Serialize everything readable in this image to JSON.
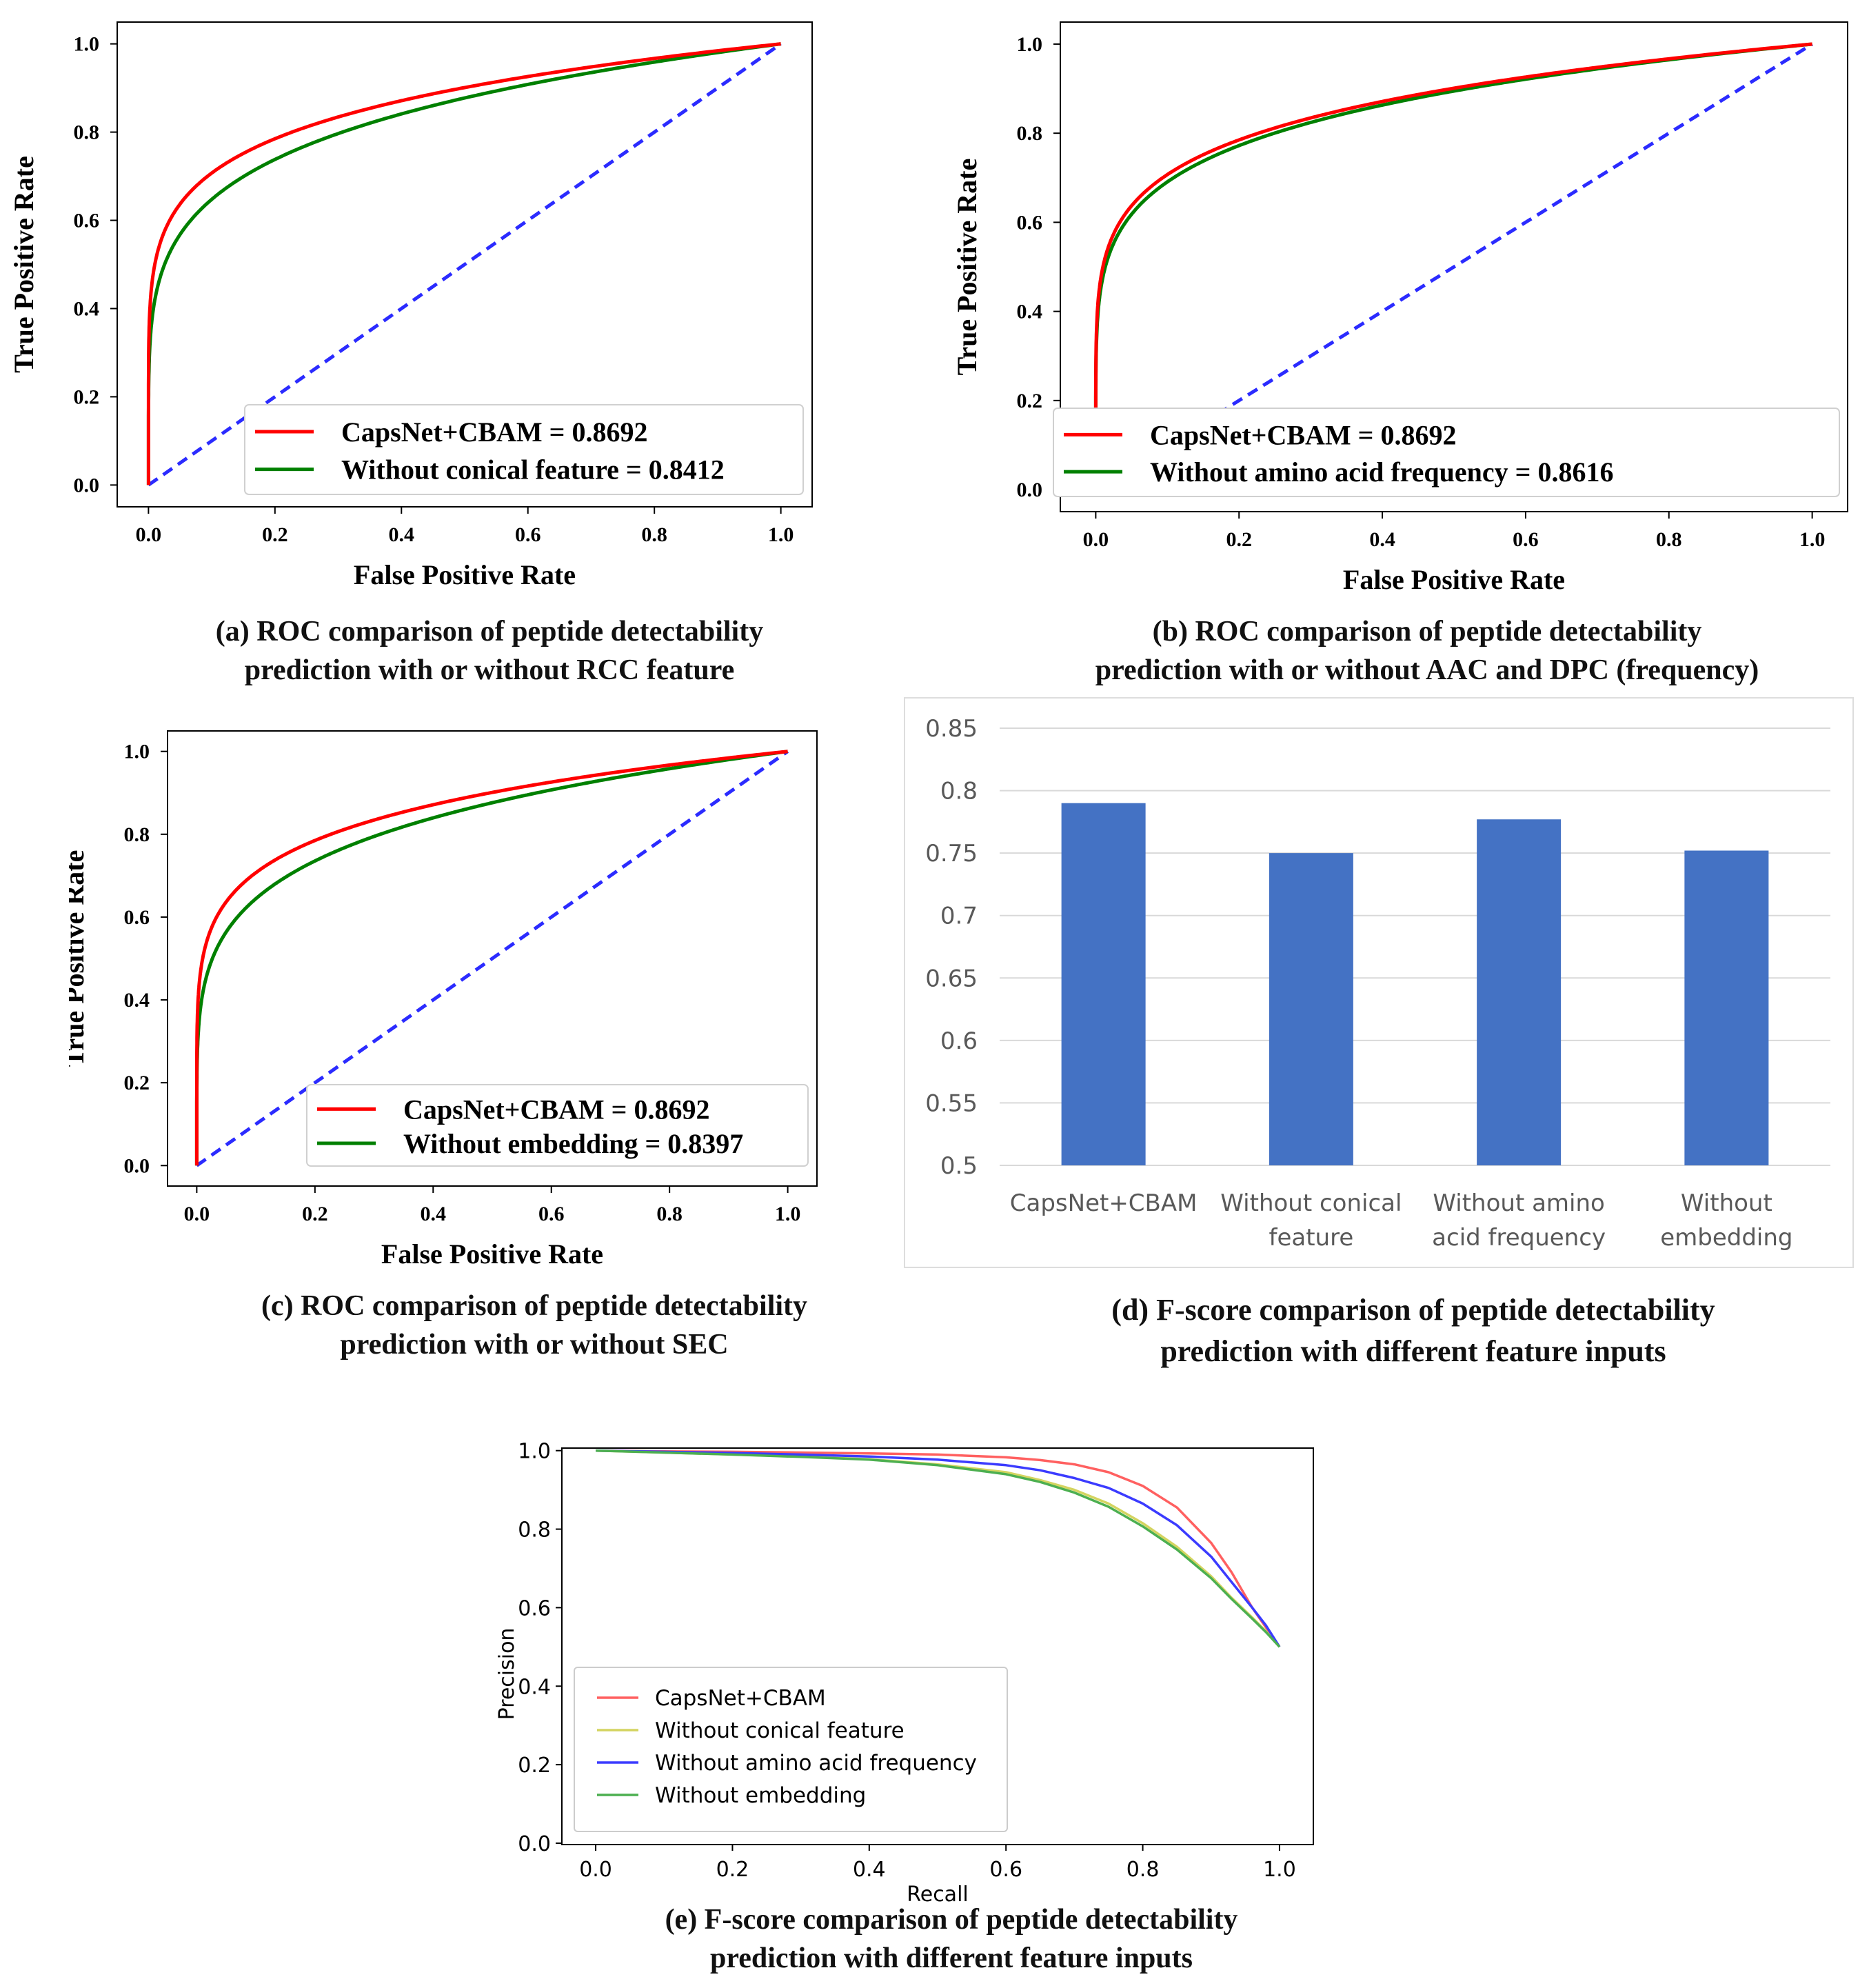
{
  "chart_data": [
    {
      "id": "a",
      "type": "line",
      "title": "",
      "xlabel": "False Positive Rate",
      "ylabel": "True Positive Rate",
      "xlim": [
        0,
        1
      ],
      "ylim": [
        0,
        1
      ],
      "xticks": [
        "0.0",
        "0.2",
        "0.4",
        "0.6",
        "0.8",
        "1.0"
      ],
      "yticks": [
        "0.0",
        "0.2",
        "0.4",
        "0.6",
        "0.8",
        "1.0"
      ],
      "legend_position": "bottom-right",
      "diagonal": true,
      "series": [
        {
          "name": "CapsNet+CBAM = 0.8692",
          "color": "#ff0000",
          "auc": 0.8692
        },
        {
          "name": "Without conical feature = 0.8412",
          "color": "#008000",
          "auc": 0.8412
        }
      ],
      "caption": [
        "(a) ROC comparison of peptide detectability",
        "prediction with or without RCC feature"
      ]
    },
    {
      "id": "b",
      "type": "line",
      "title": "",
      "xlabel": "False Positive Rate",
      "ylabel": "True Positive Rate",
      "xlim": [
        0,
        1
      ],
      "ylim": [
        0,
        1
      ],
      "xticks": [
        "0.0",
        "0.2",
        "0.4",
        "0.6",
        "0.8",
        "1.0"
      ],
      "yticks": [
        "0.0",
        "0.2",
        "0.4",
        "0.6",
        "0.8",
        "1.0"
      ],
      "legend_position": "bottom-right",
      "diagonal": true,
      "series": [
        {
          "name": "CapsNet+CBAM = 0.8692",
          "color": "#ff0000",
          "auc": 0.8692
        },
        {
          "name": "Without amino acid frequency = 0.8616",
          "color": "#008000",
          "auc": 0.8616
        }
      ],
      "caption": [
        "(b) ROC comparison of peptide detectability",
        "prediction with or without AAC and DPC (frequency)"
      ]
    },
    {
      "id": "c",
      "type": "line",
      "title": "",
      "xlabel": "False Positive Rate",
      "ylabel": "True Positive Rate",
      "xlim": [
        0,
        1
      ],
      "ylim": [
        0,
        1
      ],
      "xticks": [
        "0.0",
        "0.2",
        "0.4",
        "0.6",
        "0.8",
        "1.0"
      ],
      "yticks": [
        "0.0",
        "0.2",
        "0.4",
        "0.6",
        "0.8",
        "1.0"
      ],
      "legend_position": "bottom-right",
      "diagonal": true,
      "series": [
        {
          "name": "CapsNet+CBAM = 0.8692",
          "color": "#ff0000",
          "auc": 0.8692
        },
        {
          "name": "Without embedding = 0.8397",
          "color": "#008000",
          "auc": 0.8397
        }
      ],
      "caption": [
        "(c) ROC comparison of peptide detectability",
        "prediction with or without SEC"
      ]
    },
    {
      "id": "d",
      "type": "bar",
      "title": "",
      "xlabel": "",
      "ylabel": "",
      "ylim": [
        0.5,
        0.85
      ],
      "yticks": [
        "0.85",
        "0.8",
        "0.75",
        "0.7",
        "0.65",
        "0.6",
        "0.55",
        "0.5"
      ],
      "categories": [
        [
          "CapsNet+CBAM"
        ],
        [
          "Without conical",
          "feature"
        ],
        [
          "Without amino",
          "acid frequency"
        ],
        [
          "Without",
          "embedding"
        ]
      ],
      "values": [
        0.79,
        0.75,
        0.777,
        0.752
      ],
      "bar_color": "#4472c4",
      "caption": [
        "(d) F-score comparison of peptide detectability",
        "prediction with different feature inputs"
      ]
    },
    {
      "id": "e",
      "type": "line",
      "title": "",
      "xlabel": "Recall",
      "ylabel": "Precision",
      "xlim": [
        0,
        1
      ],
      "ylim": [
        0,
        1
      ],
      "xticks": [
        "0.0",
        "0.2",
        "0.4",
        "0.6",
        "0.8",
        "1.0"
      ],
      "yticks": [
        "0.0",
        "0.2",
        "0.4",
        "0.6",
        "0.8",
        "1.0"
      ],
      "legend_position": "lower-left",
      "series": [
        {
          "name": "CapsNet+CBAM",
          "color": "#ff6060",
          "x": [
            0.0,
            0.1,
            0.2,
            0.3,
            0.4,
            0.5,
            0.6,
            0.65,
            0.7,
            0.75,
            0.8,
            0.85,
            0.9,
            0.93,
            0.96,
            0.98,
            1.0
          ],
          "y": [
            1.0,
            0.998,
            0.997,
            0.995,
            0.993,
            0.99,
            0.983,
            0.976,
            0.965,
            0.945,
            0.91,
            0.855,
            0.765,
            0.69,
            0.6,
            0.55,
            0.5
          ]
        },
        {
          "name": "Without conical feature",
          "color": "#d4d460",
          "x": [
            0.0,
            0.1,
            0.2,
            0.3,
            0.4,
            0.5,
            0.6,
            0.65,
            0.7,
            0.75,
            0.8,
            0.85,
            0.9,
            0.93,
            0.96,
            0.98,
            1.0
          ],
          "y": [
            1.0,
            0.995,
            0.99,
            0.985,
            0.978,
            0.965,
            0.945,
            0.925,
            0.9,
            0.865,
            0.815,
            0.755,
            0.68,
            0.625,
            0.575,
            0.54,
            0.5
          ]
        },
        {
          "name": "Without amino acid frequency",
          "color": "#3b3bff",
          "x": [
            0.0,
            0.1,
            0.2,
            0.3,
            0.4,
            0.5,
            0.6,
            0.65,
            0.7,
            0.75,
            0.8,
            0.85,
            0.9,
            0.93,
            0.96,
            0.98,
            1.0
          ],
          "y": [
            1.0,
            0.997,
            0.994,
            0.99,
            0.985,
            0.977,
            0.963,
            0.95,
            0.93,
            0.905,
            0.865,
            0.81,
            0.73,
            0.665,
            0.6,
            0.555,
            0.5
          ]
        },
        {
          "name": "Without embedding",
          "color": "#4caf50",
          "x": [
            0.0,
            0.1,
            0.2,
            0.3,
            0.4,
            0.5,
            0.6,
            0.65,
            0.7,
            0.75,
            0.8,
            0.85,
            0.9,
            0.93,
            0.96,
            0.98,
            1.0
          ],
          "y": [
            1.0,
            0.995,
            0.99,
            0.984,
            0.977,
            0.963,
            0.94,
            0.92,
            0.893,
            0.857,
            0.807,
            0.748,
            0.675,
            0.622,
            0.572,
            0.538,
            0.5
          ]
        }
      ],
      "caption": [
        "(e) F-score comparison of peptide detectability",
        "prediction with different feature inputs"
      ]
    }
  ]
}
